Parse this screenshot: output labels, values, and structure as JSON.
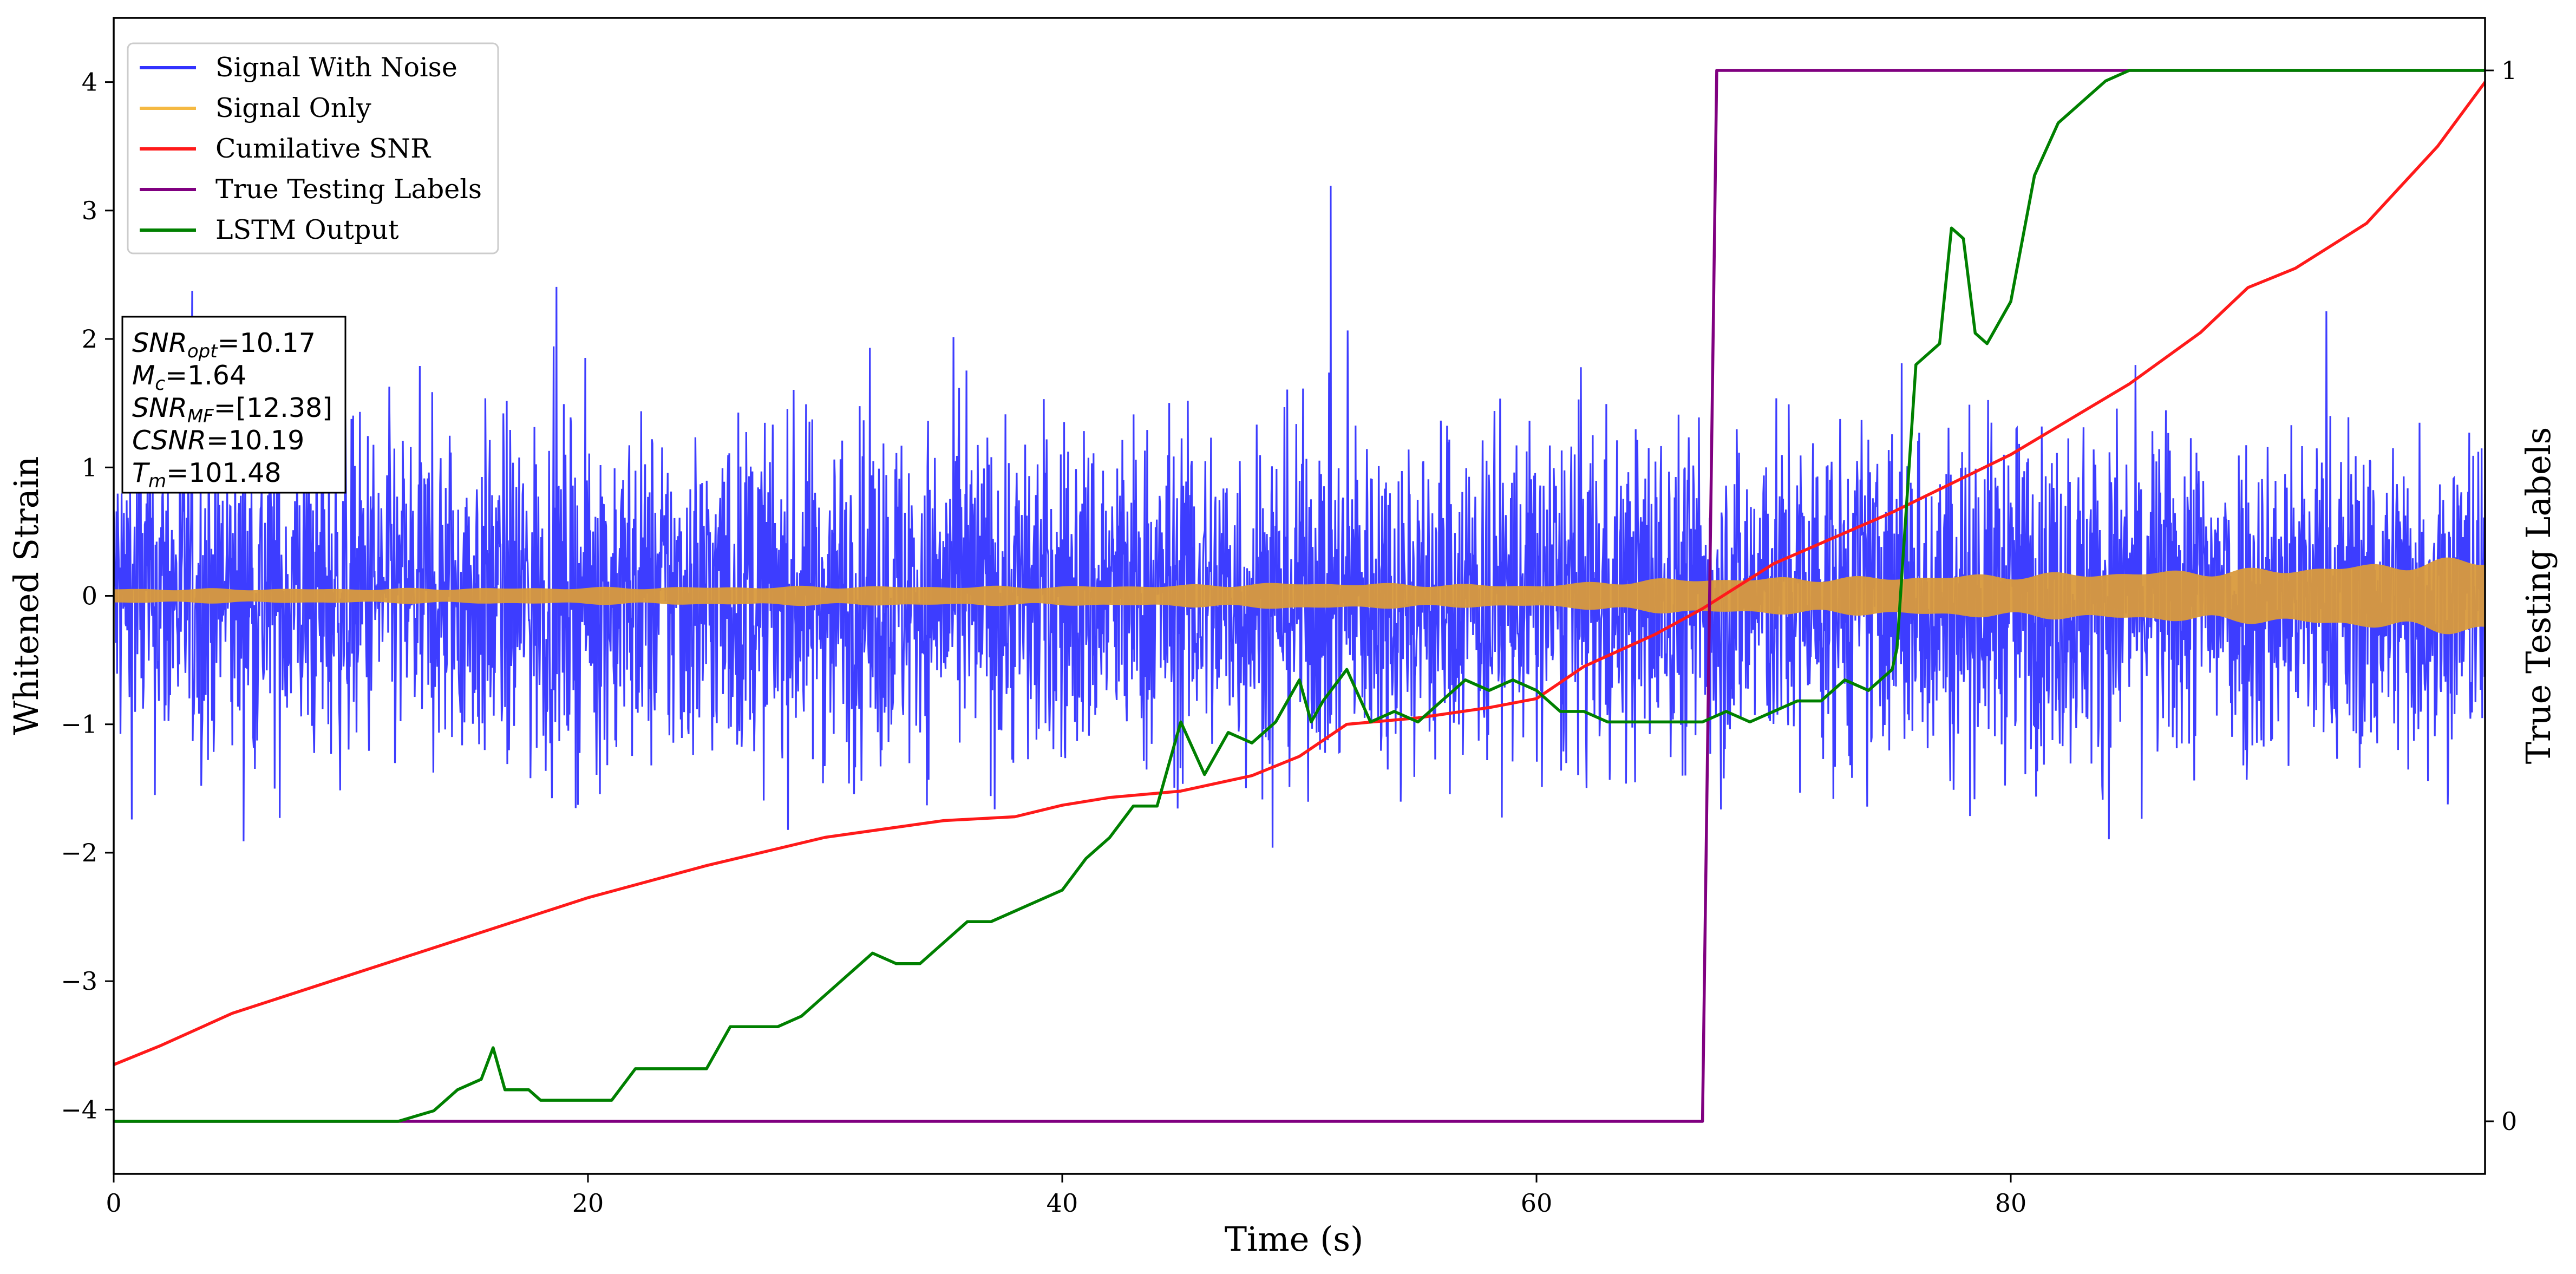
{
  "chart_data": {
    "type": "line",
    "xlabel": "Time (s)",
    "ylabel": "Whitened Strain",
    "y2label": "True Testing Labels",
    "xlim": [
      0,
      100
    ],
    "ylim": [
      -4.5,
      4.5
    ],
    "y2lim": [
      -0.05,
      1.05
    ],
    "x_ticks": [
      0,
      20,
      40,
      60,
      80
    ],
    "y_ticks": [
      -4,
      -3,
      -2,
      -1,
      0,
      1,
      2,
      3,
      4
    ],
    "y2_ticks": [
      0,
      1
    ],
    "x_tick_labels": [
      "0",
      "20",
      "40",
      "60",
      "80"
    ],
    "y_tick_labels": [
      "−4",
      "−3",
      "−2",
      "−1",
      "0",
      "1",
      "2",
      "3",
      "4"
    ],
    "y2_tick_labels": [
      "0",
      "1"
    ],
    "grid": false,
    "legend_position": "top-left",
    "legend": [
      {
        "label": "Signal With Noise",
        "color": "#3333ff"
      },
      {
        "label": "Signal Only",
        "color": "#f5b942"
      },
      {
        "label": "Cumilative SNR",
        "color": "#ff1a1a"
      },
      {
        "label": "True Testing Labels",
        "color": "#800080"
      },
      {
        "label": "LSTM Output",
        "color": "#008000"
      }
    ],
    "annotation": [
      {
        "base": "SNR",
        "sub": "opt",
        "value": "=10.17"
      },
      {
        "base": "M",
        "sub": "c",
        "value": "=1.64"
      },
      {
        "base": "SNR",
        "sub": "MF",
        "value": "=[12.38]"
      },
      {
        "base": "CSNR",
        "sub": "",
        "value": "=10.19"
      },
      {
        "base": "T",
        "sub": "m",
        "value": "=101.48"
      }
    ],
    "series": [
      {
        "name": "Signal With Noise",
        "axis": "left",
        "color": "#3333ff",
        "description": "dense noisy strain, roughly within [-2.5, 2.5] with spikes to ±3.5",
        "amplitude": 1.0
      },
      {
        "name": "Signal Only",
        "axis": "left",
        "color": "#d99a3c",
        "envelope": {
          "x": [
            0,
            10,
            20,
            30,
            40,
            45,
            50,
            55,
            60,
            65,
            70,
            75,
            80,
            85,
            90,
            95,
            100
          ],
          "y": [
            0.06,
            0.06,
            0.07,
            0.08,
            0.08,
            0.09,
            0.11,
            0.1,
            0.09,
            0.14,
            0.15,
            0.16,
            0.18,
            0.2,
            0.22,
            0.26,
            0.32
          ]
        }
      },
      {
        "name": "Cumilative SNR",
        "axis": "left",
        "color": "#ff1a1a",
        "x": [
          0,
          2,
          5,
          10,
          15,
          20,
          25,
          30,
          35,
          38,
          40,
          42,
          45,
          48,
          50,
          52,
          55,
          58,
          60,
          62,
          65,
          67,
          70,
          75,
          80,
          85,
          88,
          90,
          92,
          95,
          98,
          100
        ],
        "y": [
          -3.65,
          -3.5,
          -3.25,
          -2.95,
          -2.65,
          -2.35,
          -2.1,
          -1.88,
          -1.75,
          -1.72,
          -1.63,
          -1.57,
          -1.52,
          -1.4,
          -1.25,
          -1.0,
          -0.95,
          -0.87,
          -0.8,
          -0.55,
          -0.3,
          -0.1,
          0.25,
          0.65,
          1.1,
          1.65,
          2.05,
          2.4,
          2.55,
          2.9,
          3.5,
          4.0
        ]
      },
      {
        "name": "True Testing Labels",
        "axis": "right",
        "color": "#800080",
        "x": [
          0,
          67.0,
          67.6,
          100
        ],
        "y": [
          0,
          0,
          1,
          1
        ]
      },
      {
        "name": "LSTM Output",
        "axis": "right",
        "color": "#008000",
        "x": [
          0,
          12,
          13.5,
          14.5,
          15.5,
          16,
          16.5,
          17,
          17.5,
          18,
          18.5,
          19,
          20,
          21,
          22,
          23,
          24,
          25,
          26,
          27,
          28,
          29,
          30,
          31,
          31.5,
          32,
          33,
          34,
          35,
          35.5,
          36,
          37,
          38,
          39,
          40,
          41,
          42,
          43,
          44,
          44.5,
          45,
          46,
          47,
          48,
          49,
          50,
          50.5,
          51,
          52,
          53,
          54,
          55,
          56,
          57,
          58,
          59,
          60,
          61,
          62,
          63,
          64,
          65,
          66,
          67,
          68,
          69,
          70,
          71,
          72,
          73,
          74,
          75,
          75.2,
          76,
          77,
          77.5,
          78,
          78.5,
          79,
          80,
          81,
          82,
          83,
          84,
          85,
          86,
          88,
          90,
          100
        ],
        "y": [
          0,
          0,
          0.01,
          0.03,
          0.04,
          0.07,
          0.03,
          0.03,
          0.03,
          0.02,
          0.02,
          0.02,
          0.02,
          0.02,
          0.05,
          0.05,
          0.05,
          0.05,
          0.09,
          0.09,
          0.09,
          0.1,
          0.12,
          0.14,
          0.15,
          0.16,
          0.15,
          0.15,
          0.17,
          0.18,
          0.19,
          0.19,
          0.2,
          0.21,
          0.22,
          0.25,
          0.27,
          0.3,
          0.3,
          0.34,
          0.38,
          0.33,
          0.37,
          0.36,
          0.38,
          0.42,
          0.38,
          0.4,
          0.43,
          0.38,
          0.39,
          0.38,
          0.4,
          0.42,
          0.41,
          0.42,
          0.41,
          0.39,
          0.39,
          0.38,
          0.38,
          0.38,
          0.38,
          0.38,
          0.39,
          0.38,
          0.39,
          0.4,
          0.4,
          0.42,
          0.41,
          0.43,
          0.45,
          0.72,
          0.74,
          0.85,
          0.84,
          0.75,
          0.74,
          0.78,
          0.9,
          0.95,
          0.97,
          0.99,
          1.0,
          1.0,
          1.0,
          1.0,
          1.0
        ]
      }
    ]
  }
}
